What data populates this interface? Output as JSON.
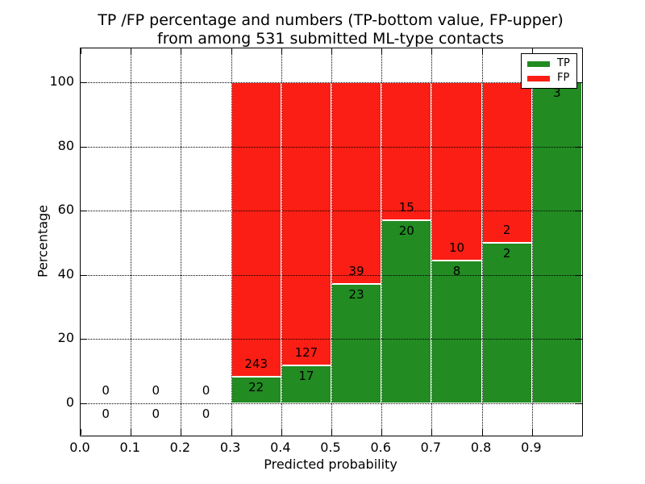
{
  "title": {
    "line1": "TP /FP percentage and numbers (TP-bottom value, FP-upper)",
    "line2": "from among 531 submitted ML-type contacts"
  },
  "x_axis": {
    "label": "Predicted probability",
    "ticks": [
      "0.0",
      "0.1",
      "0.2",
      "0.3",
      "0.4",
      "0.5",
      "0.6",
      "0.7",
      "0.8",
      "0.9"
    ]
  },
  "y_axis": {
    "label": "Percentage",
    "ticks": [
      "0",
      "20",
      "40",
      "60",
      "80",
      "100"
    ]
  },
  "legend": {
    "position": "upper right",
    "items": [
      {
        "label": "TP",
        "color": "#228b22"
      },
      {
        "label": "FP",
        "color": "#fb1e14"
      }
    ]
  },
  "colors": {
    "tp": "#228b22",
    "fp": "#fb1e14",
    "bar_edge": "#ffffff",
    "grid": "#000000",
    "background": "#ffffff"
  },
  "chart_data": {
    "type": "bar",
    "stacked": true,
    "title": "TP /FP percentage and numbers (TP-bottom value, FP-upper) from among 531 submitted ML-type contacts",
    "xlabel": "Predicted probability",
    "ylabel": "Percentage",
    "total_contacts": 531,
    "xlim": [
      0.0,
      1.0
    ],
    "ylim": [
      -10,
      110.5
    ],
    "grid": true,
    "grid_style": "dotted",
    "legend_position": "upper right",
    "bins": [
      {
        "range": "0.0-0.1",
        "tp": 0,
        "fp": 0,
        "tp_pct": 0,
        "fp_pct": 0
      },
      {
        "range": "0.1-0.2",
        "tp": 0,
        "fp": 0,
        "tp_pct": 0,
        "fp_pct": 0
      },
      {
        "range": "0.2-0.3",
        "tp": 0,
        "fp": 0,
        "tp_pct": 0,
        "fp_pct": 0
      },
      {
        "range": "0.3-0.4",
        "tp": 22,
        "fp": 243,
        "tp_pct": 8.3,
        "fp_pct": 91.7
      },
      {
        "range": "0.4-0.5",
        "tp": 17,
        "fp": 127,
        "tp_pct": 11.8,
        "fp_pct": 88.2
      },
      {
        "range": "0.5-0.6",
        "tp": 23,
        "fp": 39,
        "tp_pct": 37.1,
        "fp_pct": 62.9
      },
      {
        "range": "0.6-0.7",
        "tp": 20,
        "fp": 15,
        "tp_pct": 57.1,
        "fp_pct": 42.9
      },
      {
        "range": "0.7-0.8",
        "tp": 8,
        "fp": 10,
        "tp_pct": 44.4,
        "fp_pct": 55.6
      },
      {
        "range": "0.8-0.9",
        "tp": 2,
        "fp": 2,
        "tp_pct": 50.0,
        "fp_pct": 50.0
      },
      {
        "range": "0.9-1.0",
        "tp": 3,
        "fp": 0,
        "tp_pct": 100.0,
        "fp_pct": 0
      }
    ],
    "series": [
      {
        "name": "TP",
        "counts": [
          0,
          0,
          0,
          22,
          17,
          23,
          20,
          8,
          2,
          3
        ],
        "pct": [
          0,
          0,
          0,
          8.3,
          11.8,
          37.1,
          57.1,
          44.4,
          50.0,
          100.0
        ]
      },
      {
        "name": "FP",
        "counts": [
          0,
          0,
          0,
          243,
          127,
          39,
          15,
          10,
          2,
          0
        ],
        "pct": [
          0,
          0,
          0,
          91.7,
          88.2,
          62.9,
          42.9,
          55.6,
          50.0,
          0
        ]
      }
    ]
  }
}
